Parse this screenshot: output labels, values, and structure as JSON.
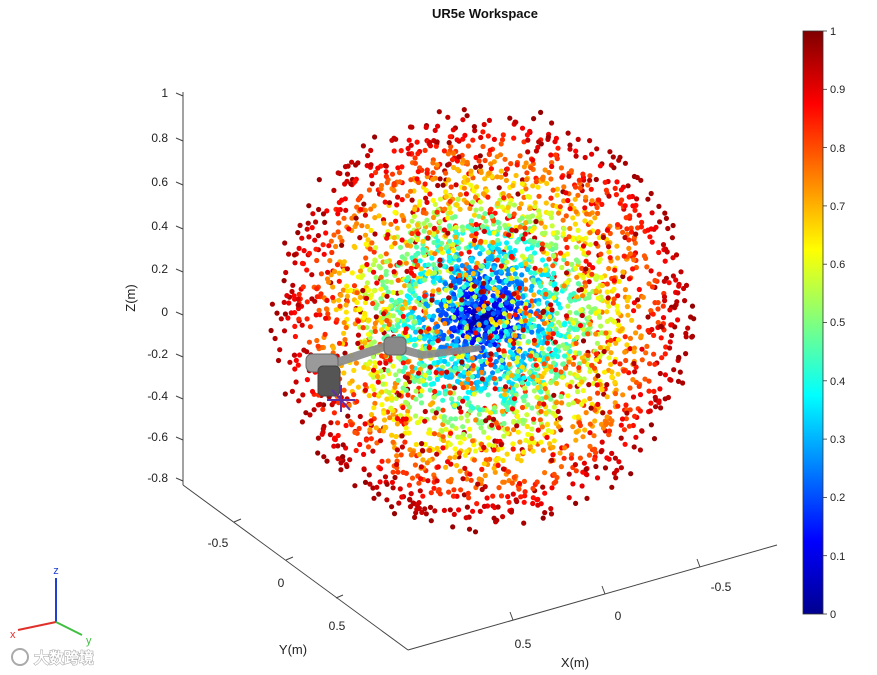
{
  "watermark": "大数跨境",
  "orientation_triad": {
    "x": "x",
    "y": "y",
    "z": "z",
    "colors": {
      "x": "#e0302a",
      "y": "#3fbf3f",
      "z": "#2040d0"
    }
  },
  "colormap": "jet",
  "chart_data": {
    "type": "scatter",
    "title": "UR5e Workspace",
    "xlabel": "X(m)",
    "ylabel": "Y(m)",
    "zlabel": "Z(m)",
    "x_ticks": [
      "0.5",
      "0",
      "-0.5"
    ],
    "y_ticks": [
      "-0.5",
      "0",
      "0.5"
    ],
    "z_ticks": [
      "1",
      "0.8",
      "0.6",
      "0.4",
      "0.2",
      "0",
      "-0.2",
      "-0.4",
      "-0.6",
      "-0.8"
    ],
    "colorbar_ticks": [
      "1",
      "0.9",
      "0.8",
      "0.7",
      "0.6",
      "0.5",
      "0.4",
      "0.3",
      "0.2",
      "0.1",
      "0"
    ],
    "colorbar_range": [
      0,
      1
    ],
    "point_cloud": {
      "shape": "sphere",
      "center": [
        0,
        0,
        0
      ],
      "radius": 0.9,
      "color_by": "distance from center (normalized)"
    },
    "grid": false
  }
}
